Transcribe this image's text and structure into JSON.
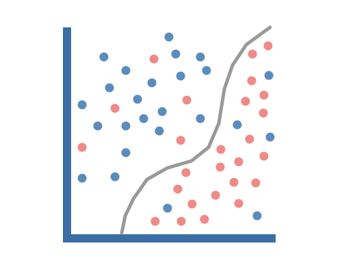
{
  "chart_data": {
    "type": "scatter",
    "xlim": [
      0,
      100
    ],
    "ylim": [
      0,
      103
    ],
    "series": [
      {
        "color": "#5b8cbd",
        "x": [
          49,
          17.3,
          52.3,
          64.3,
          28,
          54.7,
          67.3,
          40.7,
          20,
          33.7,
          6.7,
          45.7,
          36.7,
          14.3,
          28,
          44.3,
          64.3,
          28,
          6.7,
          22.7,
          82.3,
          97.7,
          98.3,
          48.3,
          92
        ],
        "values": [
          97,
          87.3,
          88.7,
          87.3,
          80.7,
          78,
          80.7,
          74.7,
          72.3,
          66.7,
          64,
          60.7,
          57.3,
          53.7,
          53.7,
          51.3,
          57.3,
          40.7,
          28.3,
          29,
          54.3,
          78.3,
          48.3,
          13.7,
          10
        ]
      },
      {
        "color": "#ef8a87",
        "x": [
          41.7,
          89.7,
          97.3,
          89.3,
          95.3,
          57.7,
          86.3,
          95,
          22.7,
          54.7,
          88.3,
          6.7,
          74.3,
          95.3,
          83,
          74,
          57.3,
          80.7,
          91.3,
          53.3,
          71.7,
          60.3,
          83,
          42.3,
          55,
          66.3
        ],
        "values": [
          86.3,
          88.7,
          92.7,
          75.7,
          68.7,
          66.3,
          65.7,
          60,
          62.3,
          46.7,
          47.3,
          43.3,
          42.3,
          39,
          36.3,
          33.7,
          31,
          26.3,
          26,
          23,
          20,
          15.7,
          16,
          7.3,
          7.3,
          8.3
        ]
      },
      {
        "type": "line",
        "color": "#999999",
        "x": [
          26,
          27.7,
          31.7,
          38.3,
          48.3,
          60,
          68.3,
          73.3,
          76,
          80,
          86.7,
          98.3
        ],
        "values": [
          1.7,
          10,
          18.3,
          27.7,
          33.3,
          36.7,
          43.3,
          55,
          71.7,
          83.3,
          93.3,
          101.7
        ]
      }
    ]
  }
}
